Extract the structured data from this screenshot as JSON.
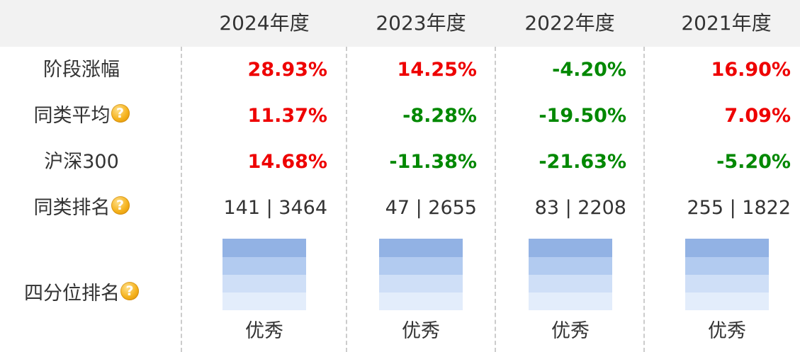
{
  "years": [
    "2024年度",
    "2023年度",
    "2022年度",
    "2021年度"
  ],
  "rows": {
    "period_change": {
      "label": "阶段涨幅",
      "values": [
        {
          "text": "28.93%",
          "trend": "up"
        },
        {
          "text": "14.25%",
          "trend": "up"
        },
        {
          "text": "-4.20%",
          "trend": "down"
        },
        {
          "text": "16.90%",
          "trend": "up"
        }
      ]
    },
    "category_avg": {
      "label": "同类平均",
      "has_help": true,
      "values": [
        {
          "text": "11.37%",
          "trend": "up"
        },
        {
          "text": "-8.28%",
          "trend": "down"
        },
        {
          "text": "-19.50%",
          "trend": "down"
        },
        {
          "text": "7.09%",
          "trend": "up"
        }
      ]
    },
    "csi300": {
      "label": "沪深300",
      "values": [
        {
          "text": "14.68%",
          "trend": "up"
        },
        {
          "text": "-11.38%",
          "trend": "down"
        },
        {
          "text": "-21.63%",
          "trend": "down"
        },
        {
          "text": "-5.20%",
          "trend": "down"
        }
      ]
    },
    "category_rank": {
      "label": "同类排名",
      "has_help": true,
      "values": [
        "141 | 3464",
        "47 | 2655",
        "83 | 2208",
        "255 | 1822"
      ]
    },
    "quartile_rank": {
      "label": "四分位排名",
      "has_help": true,
      "values": [
        "优秀",
        "优秀",
        "优秀",
        "优秀"
      ]
    }
  },
  "help_icon": {
    "name": "question-mark-icon",
    "glyph": "?"
  },
  "colors": {
    "up": "#ee0000",
    "down": "#008800",
    "header_bg": "#f2f2f2",
    "quartile_bands": [
      "#92b2e4",
      "#b2cbf0",
      "#cfdff7",
      "#e3edfb"
    ]
  }
}
